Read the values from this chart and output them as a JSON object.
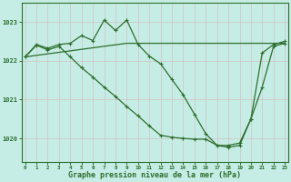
{
  "bg_color": "#c5ede5",
  "grid_color": "#b0ddd5",
  "line_color": "#2d6e2d",
  "xlabel": "Graphe pression niveau de la mer (hPa)",
  "xlabel_color": "#2d6e2d",
  "tick_color": "#2d6e2d",
  "ylim": [
    1019.4,
    1023.5
  ],
  "xlim": [
    -0.3,
    23.3
  ],
  "yticks": [
    1020,
    1021,
    1022,
    1023
  ],
  "xticks": [
    0,
    1,
    2,
    3,
    4,
    5,
    6,
    7,
    8,
    9,
    10,
    11,
    12,
    13,
    14,
    15,
    16,
    17,
    18,
    19,
    20,
    21,
    22,
    23
  ],
  "series1_x": [
    0,
    1,
    2,
    3,
    4,
    5,
    6,
    7,
    8,
    9,
    10,
    11,
    12,
    13,
    14,
    15,
    16,
    17,
    18,
    19,
    20,
    21,
    22,
    23
  ],
  "series1_y": [
    1022.1,
    1022.42,
    1022.32,
    1022.42,
    1022.45,
    1022.65,
    1022.52,
    1023.05,
    1022.78,
    1023.05,
    1022.42,
    1022.12,
    1021.92,
    1021.52,
    1021.12,
    1020.62,
    1020.12,
    1019.82,
    1019.82,
    1019.88,
    1020.5,
    1022.2,
    1022.42,
    1022.5
  ],
  "series2_x": [
    0,
    9,
    16,
    20,
    23
  ],
  "series2_y": [
    1022.1,
    1022.45,
    1022.45,
    1022.45,
    1022.45
  ],
  "series3_x": [
    0,
    1,
    2,
    3,
    4,
    5,
    6,
    7,
    8,
    9,
    10,
    11,
    12,
    13,
    14,
    15,
    16,
    17,
    18,
    19,
    20,
    21,
    22,
    23
  ],
  "series3_y": [
    1022.1,
    1022.4,
    1022.28,
    1022.37,
    1022.1,
    1021.82,
    1021.58,
    1021.32,
    1021.08,
    1020.82,
    1020.58,
    1020.32,
    1020.08,
    1020.03,
    1020.0,
    1019.98,
    1019.98,
    1019.82,
    1019.77,
    1019.82,
    1020.5,
    1021.32,
    1022.37,
    1022.45
  ]
}
